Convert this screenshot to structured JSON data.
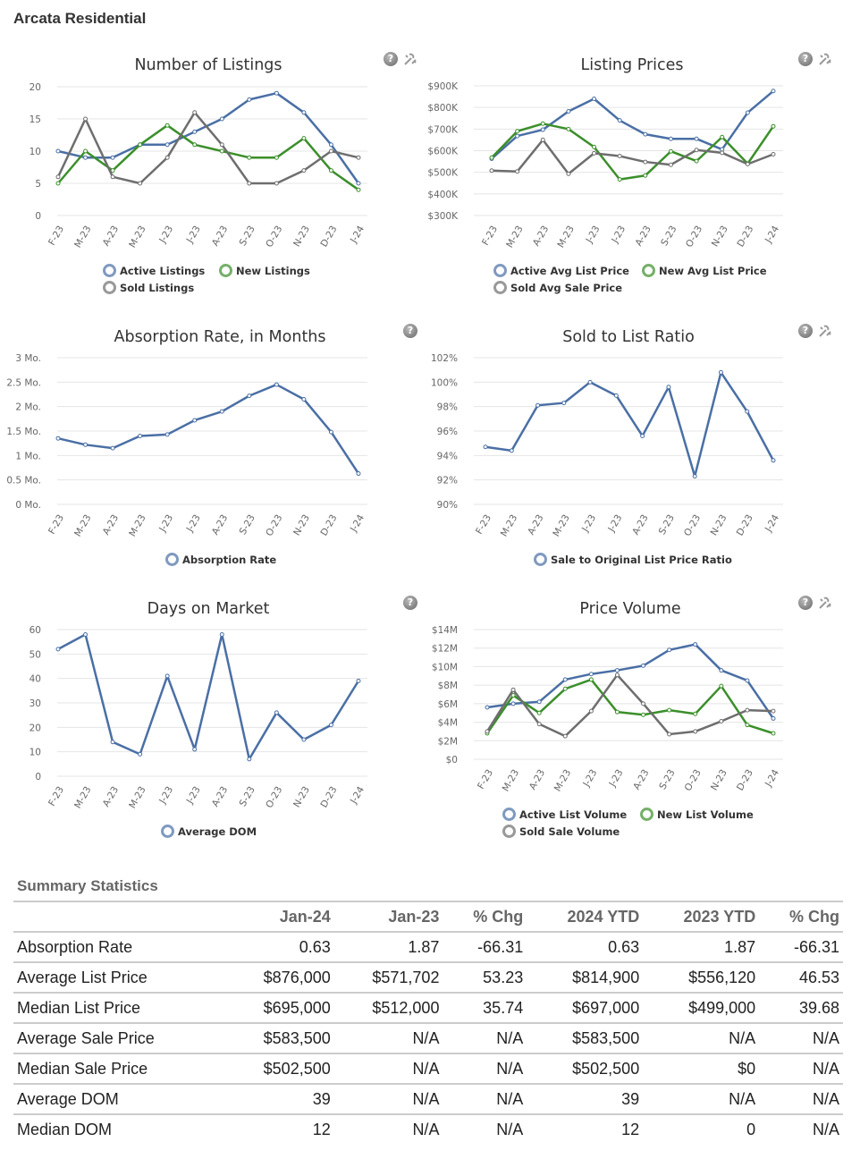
{
  "page_title": "Arcata Residential",
  "colors": {
    "active": "#4a6fa5",
    "new": "#3b8f2a",
    "sold": "#6e6e6e",
    "grid": "#e4e4e4"
  },
  "chart_data": [
    {
      "type": "line",
      "title": "Number of Listings",
      "categories": [
        "F-23",
        "M-23",
        "A-23",
        "M-23",
        "J-23",
        "J-23",
        "A-23",
        "S-23",
        "O-23",
        "N-23",
        "D-23",
        "J-24"
      ],
      "ylim": [
        0,
        20
      ],
      "yticks": [
        0,
        5,
        10,
        15,
        20
      ],
      "ytick_labels": [
        "0",
        "5",
        "10",
        "15",
        "20"
      ],
      "series": [
        {
          "name": "Active Listings",
          "key": "active",
          "values": [
            10,
            9,
            9,
            11,
            11,
            13,
            15,
            18,
            19,
            16,
            11,
            5
          ]
        },
        {
          "name": "New Listings",
          "key": "new",
          "values": [
            5,
            10,
            7,
            11,
            14,
            11,
            10,
            9,
            9,
            12,
            7,
            4
          ]
        },
        {
          "name": "Sold Listings",
          "key": "sold",
          "values": [
            6,
            15,
            6,
            5,
            9,
            16,
            11,
            5,
            5,
            7,
            10,
            9
          ]
        }
      ]
    },
    {
      "type": "line",
      "title": "Listing Prices",
      "categories": [
        "F-23",
        "M-23",
        "A-23",
        "M-23",
        "J-23",
        "J-23",
        "A-23",
        "S-23",
        "O-23",
        "N-23",
        "D-23",
        "J-24"
      ],
      "ylim": [
        300000,
        900000
      ],
      "yticks": [
        300000,
        400000,
        500000,
        600000,
        700000,
        800000,
        900000
      ],
      "ytick_labels": [
        "$300K",
        "$400K",
        "$500K",
        "$600K",
        "$700K",
        "$800K",
        "$900K"
      ],
      "series": [
        {
          "name": "Active Avg List Price",
          "key": "active",
          "values": [
            563000,
            668000,
            697000,
            782000,
            840000,
            740000,
            676000,
            655000,
            655000,
            606000,
            776000,
            876000
          ]
        },
        {
          "name": "New Avg List Price",
          "key": "new",
          "values": [
            568000,
            690000,
            725000,
            700000,
            617000,
            467000,
            485000,
            597000,
            552000,
            663000,
            540000,
            713000
          ]
        },
        {
          "name": "Sold Avg Sale Price",
          "key": "sold",
          "values": [
            508000,
            504000,
            650000,
            493000,
            588000,
            575000,
            548000,
            535000,
            603000,
            590000,
            538000,
            583500
          ]
        }
      ]
    },
    {
      "type": "line",
      "title": "Absorption Rate, in Months",
      "categories": [
        "F-23",
        "M-23",
        "A-23",
        "M-23",
        "J-23",
        "J-23",
        "A-23",
        "S-23",
        "O-23",
        "N-23",
        "D-23",
        "J-24"
      ],
      "ylim": [
        0,
        3
      ],
      "yticks": [
        0,
        0.5,
        1,
        1.5,
        2,
        2.5,
        3
      ],
      "ytick_labels": [
        "0 Mo.",
        "0.5 Mo.",
        "1 Mo.",
        "1.5 Mo.",
        "2 Mo.",
        "2.5 Mo.",
        "3 Mo."
      ],
      "series": [
        {
          "name": "Absorption Rate",
          "key": "active",
          "values": [
            1.35,
            1.22,
            1.15,
            1.4,
            1.43,
            1.72,
            1.9,
            2.22,
            2.45,
            2.15,
            1.48,
            0.63
          ]
        }
      ]
    },
    {
      "type": "line",
      "title": "Sold to List Ratio",
      "categories": [
        "F-23",
        "M-23",
        "A-23",
        "M-23",
        "J-23",
        "J-23",
        "A-23",
        "S-23",
        "O-23",
        "N-23",
        "D-23",
        "J-24"
      ],
      "ylim": [
        90,
        102
      ],
      "yticks": [
        90,
        92,
        94,
        96,
        98,
        100,
        102
      ],
      "ytick_labels": [
        "90%",
        "92%",
        "94%",
        "96%",
        "98%",
        "100%",
        "102%"
      ],
      "series": [
        {
          "name": "Sale to Original List Price Ratio",
          "key": "active",
          "values": [
            94.7,
            94.4,
            98.1,
            98.3,
            100,
            98.9,
            95.6,
            99.6,
            92.3,
            100.8,
            97.6,
            93.6
          ]
        }
      ]
    },
    {
      "type": "line",
      "title": "Days on Market",
      "categories": [
        "F-23",
        "M-23",
        "A-23",
        "M-23",
        "J-23",
        "J-23",
        "A-23",
        "S-23",
        "O-23",
        "N-23",
        "D-23",
        "J-24"
      ],
      "ylim": [
        0,
        60
      ],
      "yticks": [
        0,
        10,
        20,
        30,
        40,
        50,
        60
      ],
      "ytick_labels": [
        "0",
        "10",
        "20",
        "30",
        "40",
        "50",
        "60"
      ],
      "series": [
        {
          "name": "Average DOM",
          "key": "active",
          "values": [
            52,
            58,
            14,
            9,
            41,
            11,
            58,
            7,
            26,
            15,
            21,
            39
          ]
        }
      ]
    },
    {
      "type": "line",
      "title": "Price Volume",
      "categories": [
        "F-23",
        "M-23",
        "A-23",
        "M-23",
        "J-23",
        "J-23",
        "A-23",
        "S-23",
        "O-23",
        "N-23",
        "D-23",
        "J-24"
      ],
      "ylim": [
        0,
        14000000
      ],
      "yticks": [
        0,
        2000000,
        4000000,
        6000000,
        8000000,
        10000000,
        12000000,
        14000000
      ],
      "ytick_labels": [
        "$0",
        "$2M",
        "$4M",
        "$6M",
        "$8M",
        "$10M",
        "$12M",
        "$14M"
      ],
      "series": [
        {
          "name": "Active List Volume",
          "key": "active",
          "values": [
            5600000,
            6000000,
            6200000,
            8600000,
            9200000,
            9600000,
            10100000,
            11800000,
            12400000,
            9600000,
            8500000,
            4400000
          ]
        },
        {
          "name": "New List Volume",
          "key": "new",
          "values": [
            2800000,
            6900000,
            5000000,
            7600000,
            8600000,
            5100000,
            4800000,
            5300000,
            4900000,
            7900000,
            3700000,
            2800000
          ]
        },
        {
          "name": "Sold Sale Volume",
          "key": "sold",
          "values": [
            3000000,
            7500000,
            3800000,
            2500000,
            5200000,
            9100000,
            6000000,
            2700000,
            3000000,
            4100000,
            5300000,
            5200000
          ]
        }
      ]
    }
  ],
  "summary": {
    "title": "Summary Statistics",
    "headers": [
      "",
      "Jan-24",
      "Jan-23",
      "% Chg",
      "2024 YTD",
      "2023 YTD",
      "% Chg"
    ],
    "rows": [
      [
        "Absorption Rate",
        "0.63",
        "1.87",
        "-66.31",
        "0.63",
        "1.87",
        "-66.31"
      ],
      [
        "Average List Price",
        "$876,000",
        "$571,702",
        "53.23",
        "$814,900",
        "$556,120",
        "46.53"
      ],
      [
        "Median List Price",
        "$695,000",
        "$512,000",
        "35.74",
        "$697,000",
        "$499,000",
        "39.68"
      ],
      [
        "Average Sale Price",
        "$583,500",
        "N/A",
        "N/A",
        "$583,500",
        "N/A",
        "N/A"
      ],
      [
        "Median Sale Price",
        "$502,500",
        "N/A",
        "N/A",
        "$502,500",
        "$0",
        "N/A"
      ],
      [
        "Average DOM",
        "39",
        "N/A",
        "N/A",
        "39",
        "N/A",
        "N/A"
      ],
      [
        "Median DOM",
        "12",
        "N/A",
        "N/A",
        "12",
        "0",
        "N/A"
      ]
    ]
  },
  "help_label": "?"
}
